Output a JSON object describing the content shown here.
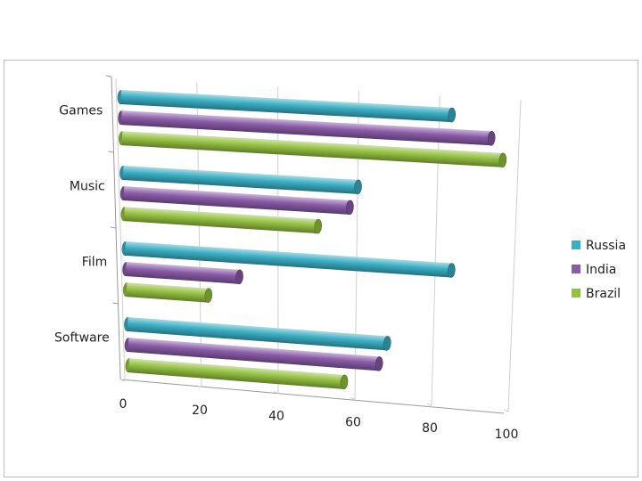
{
  "chart_data": {
    "type": "bar",
    "orientation": "horizontal",
    "style": "3d-cylinder",
    "categories": [
      "Games",
      "Music",
      "Film",
      "Software"
    ],
    "series": [
      {
        "name": "Russia",
        "values": [
          82,
          59,
          83,
          67
        ],
        "color": "#3aaec4"
      },
      {
        "name": "India",
        "values": [
          92,
          57,
          29,
          65
        ],
        "color": "#8a5ba8"
      },
      {
        "name": "Brazil",
        "values": [
          95,
          49,
          21,
          56
        ],
        "color": "#94c140"
      }
    ],
    "x_ticks": [
      "0",
      "20",
      "40",
      "60",
      "80",
      "100"
    ],
    "xlim": [
      0,
      100
    ],
    "grid": true,
    "legend": "right"
  }
}
